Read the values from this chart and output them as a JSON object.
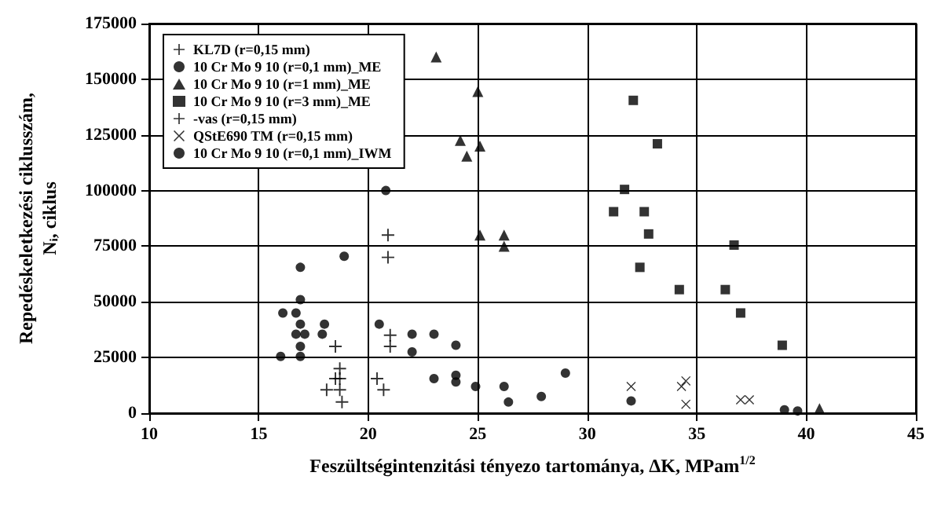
{
  "chart_data": {
    "type": "scatter",
    "xlabel": "Feszültségintenzitási tényezo tartománya, ΔK, MPam$^{1/2}$",
    "ylabel": "Repedéskeletkezési ciklusszám,\nNᵢ, ciklus",
    "xlim": [
      10,
      45
    ],
    "xticks": [
      10,
      15,
      20,
      25,
      30,
      35,
      40,
      45
    ],
    "ylim": [
      0,
      175000
    ],
    "yticks": [
      0,
      25000,
      50000,
      75000,
      100000,
      125000,
      150000,
      175000
    ],
    "grid": true,
    "legend": "top left",
    "series": [
      {
        "name": "KL7D (r=0,15 mm)",
        "color": "#000000",
        "marker": "cross",
        "x": [
          20.9,
          20.9,
          21,
          21
        ],
        "values": [
          80000,
          70000,
          35000,
          30000
        ]
      },
      {
        "name": "10 Cr Mo 9 10 (r=0,1 mm)_ME",
        "color": "#000000",
        "marker": "circle",
        "x": [
          16.9,
          16.1,
          16.7,
          16.9,
          16.7,
          17.1,
          17.9,
          16.9,
          16,
          20.5,
          20.8,
          26.2,
          26.4,
          39,
          39.6
        ],
        "values": [
          51000,
          45000,
          45000,
          40000,
          35500,
          35500,
          35500,
          30000,
          25500,
          40000,
          100000,
          12000,
          5000,
          1500,
          1000
        ]
      },
      {
        "name": "10 Cr Mo 9 10 (r=1 mm)_ME",
        "color": "#000000",
        "marker": "triangle",
        "x": [
          23.1,
          25,
          24.2,
          25.1,
          24.5,
          25.1,
          26.2,
          26.2,
          40.6
        ],
        "values": [
          160000,
          144500,
          122500,
          120000,
          115500,
          80000,
          80000,
          75000,
          2000
        ]
      },
      {
        "name": "10 Cr Mo 9 10 (r=3 mm)_ME",
        "color": "#000000",
        "marker": "square",
        "x": [
          32.1,
          33.2,
          31.7,
          31.2,
          32.6,
          32.8,
          32.4,
          34.2,
          36.3,
          36.7,
          37,
          38.9
        ],
        "values": [
          140500,
          121000,
          100500,
          90500,
          90500,
          80500,
          65500,
          55500,
          55500,
          75500,
          45000,
          30500
        ]
      },
      {
        "name": "-vas (r=0,15 mm)",
        "color": "#000000",
        "marker": "cross",
        "x": [
          18.5,
          18.7,
          18.5,
          18.7,
          18.1,
          18.7,
          18.8,
          20.4,
          20.7
        ],
        "values": [
          30000,
          20000,
          15500,
          15500,
          10500,
          10500,
          5000,
          15500,
          10500
        ]
      },
      {
        "name": "QStE690 TM (r=0,15 mm)",
        "color": "#000000",
        "marker": "x",
        "x": [
          32,
          34.3,
          34.5,
          34.5,
          37,
          37.4
        ],
        "values": [
          12000,
          12000,
          14500,
          4000,
          6000,
          6000
        ]
      },
      {
        "name": "10 Cr Mo 9 10 (r=0,1 mm)_IWM",
        "color": "#000000",
        "marker": "circle",
        "x": [
          16.9,
          18.9,
          18,
          16.9,
          22,
          23,
          22,
          23,
          24,
          24,
          24,
          24.9,
          29,
          27.9,
          32
        ],
        "values": [
          65500,
          70500,
          40000,
          25500,
          35500,
          35500,
          27500,
          15500,
          17000,
          14000,
          30500,
          12000,
          18000,
          7500,
          5500
        ]
      }
    ]
  }
}
